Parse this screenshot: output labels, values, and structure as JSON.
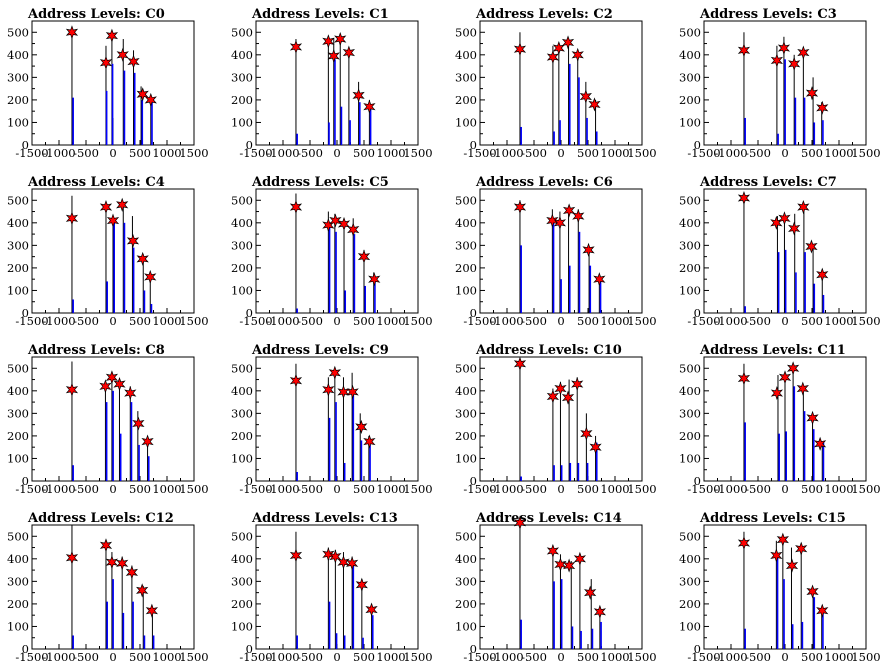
{
  "figure": {
    "title_prefix": "Address Levels: ",
    "xticks": [
      -1500,
      -1000,
      -500,
      0,
      500,
      1000,
      1500
    ],
    "xlim": [
      -1500,
      1500
    ],
    "ylim": [
      0,
      550
    ],
    "yticks": [
      0,
      100,
      200,
      300,
      400,
      500
    ],
    "colors": {
      "blue": "#0000ff",
      "black": "#000000",
      "star": "#ff0000"
    }
  },
  "chart_data": [
    {
      "type": "bar",
      "title": "Address Levels: C0",
      "black": [
        [
          -760,
          510
        ],
        [
          -130,
          440
        ],
        [
          -20,
          490
        ],
        [
          0,
          120
        ],
        [
          190,
          470
        ],
        [
          380,
          420
        ],
        [
          520,
          260
        ],
        [
          700,
          210
        ]
      ],
      "blue": [
        [
          -760,
          210
        ],
        [
          -140,
          240
        ],
        [
          -30,
          360
        ],
        [
          190,
          330
        ],
        [
          380,
          320
        ],
        [
          520,
          200
        ],
        [
          700,
          190
        ]
      ],
      "stars": [
        [
          -760,
          500
        ],
        [
          -130,
          365
        ],
        [
          -20,
          485
        ],
        [
          180,
          400
        ],
        [
          380,
          370
        ],
        [
          550,
          225
        ],
        [
          700,
          200
        ]
      ]
    },
    {
      "type": "bar",
      "title": "Address Levels: C1",
      "black": [
        [
          -760,
          470
        ],
        [
          -160,
          460
        ],
        [
          -60,
          475
        ],
        [
          60,
          460
        ],
        [
          220,
          430
        ],
        [
          400,
          280
        ],
        [
          600,
          200
        ]
      ],
      "blue": [
        [
          -760,
          50
        ],
        [
          -170,
          100
        ],
        [
          -60,
          380
        ],
        [
          60,
          170
        ],
        [
          220,
          110
        ],
        [
          400,
          190
        ],
        [
          600,
          170
        ]
      ],
      "stars": [
        [
          -760,
          435
        ],
        [
          -160,
          460
        ],
        [
          -60,
          395
        ],
        [
          60,
          470
        ],
        [
          220,
          410
        ],
        [
          400,
          220
        ],
        [
          600,
          170
        ]
      ]
    },
    {
      "type": "bar",
      "title": "Address Levels: C2",
      "black": [
        [
          -760,
          500
        ],
        [
          -150,
          440
        ],
        [
          -40,
          450
        ],
        [
          140,
          470
        ],
        [
          310,
          420
        ],
        [
          460,
          280
        ],
        [
          640,
          200
        ]
      ],
      "blue": [
        [
          -760,
          80
        ],
        [
          -150,
          60
        ],
        [
          -40,
          110
        ],
        [
          140,
          360
        ],
        [
          310,
          300
        ],
        [
          460,
          120
        ],
        [
          640,
          60
        ]
      ],
      "stars": [
        [
          -760,
          425
        ],
        [
          -150,
          390
        ],
        [
          -40,
          430
        ],
        [
          130,
          455
        ],
        [
          310,
          400
        ],
        [
          460,
          215
        ],
        [
          620,
          180
        ]
      ]
    },
    {
      "type": "bar",
      "title": "Address Levels: C3",
      "black": [
        [
          -760,
          500
        ],
        [
          -150,
          440
        ],
        [
          -20,
          480
        ],
        [
          170,
          400
        ],
        [
          340,
          420
        ],
        [
          520,
          300
        ],
        [
          680,
          190
        ]
      ],
      "blue": [
        [
          -760,
          120
        ],
        [
          -150,
          50
        ],
        [
          -20,
          380
        ],
        [
          170,
          210
        ],
        [
          340,
          210
        ],
        [
          520,
          100
        ],
        [
          680,
          110
        ]
      ],
      "stars": [
        [
          -760,
          420
        ],
        [
          -150,
          375
        ],
        [
          -20,
          430
        ],
        [
          170,
          360
        ],
        [
          340,
          410
        ],
        [
          500,
          230
        ],
        [
          690,
          165
        ]
      ]
    },
    {
      "type": "bar",
      "title": "Address Levels: C4",
      "black": [
        [
          -760,
          520
        ],
        [
          -130,
          480
        ],
        [
          0,
          430
        ],
        [
          190,
          490
        ],
        [
          360,
          430
        ],
        [
          560,
          260
        ],
        [
          690,
          180
        ]
      ],
      "blue": [
        [
          -760,
          60
        ],
        [
          -130,
          140
        ],
        [
          0,
          400
        ],
        [
          190,
          400
        ],
        [
          360,
          290
        ],
        [
          560,
          100
        ],
        [
          690,
          40
        ]
      ],
      "stars": [
        [
          -760,
          420
        ],
        [
          -130,
          470
        ],
        [
          0,
          410
        ],
        [
          170,
          480
        ],
        [
          370,
          320
        ],
        [
          550,
          240
        ],
        [
          690,
          160
        ]
      ]
    },
    {
      "type": "bar",
      "title": "Address Levels: C5",
      "black": [
        [
          -760,
          530
        ],
        [
          -160,
          450
        ],
        [
          -40,
          440
        ],
        [
          130,
          420
        ],
        [
          300,
          420
        ],
        [
          500,
          280
        ],
        [
          680,
          180
        ]
      ],
      "blue": [
        [
          -760,
          20
        ],
        [
          -160,
          380
        ],
        [
          -40,
          360
        ],
        [
          130,
          100
        ],
        [
          300,
          350
        ],
        [
          500,
          120
        ],
        [
          680,
          140
        ]
      ],
      "stars": [
        [
          -760,
          470
        ],
        [
          -160,
          390
        ],
        [
          -30,
          410
        ],
        [
          130,
          395
        ],
        [
          300,
          370
        ],
        [
          500,
          250
        ],
        [
          690,
          150
        ]
      ]
    },
    {
      "type": "bar",
      "title": "Address Levels: C6",
      "black": [
        [
          -760,
          500
        ],
        [
          -160,
          460
        ],
        [
          -20,
          450
        ],
        [
          140,
          470
        ],
        [
          320,
          460
        ],
        [
          520,
          290
        ],
        [
          710,
          160
        ]
      ],
      "blue": [
        [
          -760,
          300
        ],
        [
          -160,
          400
        ],
        [
          -20,
          150
        ],
        [
          140,
          210
        ],
        [
          320,
          360
        ],
        [
          520,
          210
        ],
        [
          710,
          140
        ]
      ],
      "stars": [
        [
          -760,
          470
        ],
        [
          -160,
          410
        ],
        [
          -20,
          400
        ],
        [
          150,
          455
        ],
        [
          320,
          430
        ],
        [
          510,
          280
        ],
        [
          710,
          150
        ]
      ]
    },
    {
      "type": "bar",
      "title": "Address Levels: C7",
      "black": [
        [
          -760,
          510
        ],
        [
          -140,
          430
        ],
        [
          -10,
          440
        ],
        [
          180,
          440
        ],
        [
          350,
          480
        ],
        [
          520,
          300
        ],
        [
          690,
          190
        ]
      ],
      "blue": [
        [
          -760,
          30
        ],
        [
          -140,
          270
        ],
        [
          -10,
          280
        ],
        [
          180,
          180
        ],
        [
          350,
          270
        ],
        [
          520,
          130
        ],
        [
          690,
          80
        ]
      ],
      "stars": [
        [
          -760,
          510
        ],
        [
          -160,
          400
        ],
        [
          -10,
          420
        ],
        [
          170,
          375
        ],
        [
          340,
          470
        ],
        [
          490,
          295
        ],
        [
          690,
          170
        ]
      ]
    },
    {
      "type": "bar",
      "title": "Address Levels: C8",
      "black": [
        [
          -760,
          530
        ],
        [
          -140,
          440
        ],
        [
          -20,
          470
        ],
        [
          120,
          440
        ],
        [
          320,
          420
        ],
        [
          460,
          310
        ],
        [
          640,
          170
        ]
      ],
      "blue": [
        [
          -760,
          70
        ],
        [
          -140,
          350
        ],
        [
          -20,
          400
        ],
        [
          120,
          210
        ],
        [
          320,
          350
        ],
        [
          460,
          160
        ],
        [
          640,
          110
        ]
      ],
      "stars": [
        [
          -760,
          405
        ],
        [
          -140,
          420
        ],
        [
          -20,
          460
        ],
        [
          120,
          430
        ],
        [
          320,
          390
        ],
        [
          470,
          255
        ],
        [
          640,
          175
        ]
      ]
    },
    {
      "type": "bar",
      "title": "Address Levels: C9",
      "black": [
        [
          -760,
          520
        ],
        [
          -160,
          460
        ],
        [
          -40,
          480
        ],
        [
          120,
          460
        ],
        [
          280,
          480
        ],
        [
          430,
          300
        ],
        [
          590,
          200
        ]
      ],
      "blue": [
        [
          -760,
          40
        ],
        [
          -160,
          280
        ],
        [
          -40,
          350
        ],
        [
          120,
          80
        ],
        [
          280,
          390
        ],
        [
          430,
          180
        ],
        [
          590,
          160
        ]
      ],
      "stars": [
        [
          -760,
          445
        ],
        [
          -160,
          405
        ],
        [
          -40,
          480
        ],
        [
          120,
          395
        ],
        [
          290,
          395
        ],
        [
          450,
          240
        ],
        [
          600,
          175
        ]
      ]
    },
    {
      "type": "bar",
      "title": "Address Levels: C10",
      "black": [
        [
          -760,
          530
        ],
        [
          -150,
          410
        ],
        [
          -10,
          440
        ],
        [
          150,
          450
        ],
        [
          300,
          460
        ],
        [
          470,
          300
        ],
        [
          640,
          200
        ]
      ],
      "blue": [
        [
          -760,
          20
        ],
        [
          -150,
          70
        ],
        [
          -10,
          70
        ],
        [
          150,
          80
        ],
        [
          300,
          80
        ],
        [
          470,
          80
        ],
        [
          640,
          170
        ]
      ],
      "stars": [
        [
          -760,
          520
        ],
        [
          -150,
          375
        ],
        [
          -10,
          410
        ],
        [
          130,
          370
        ],
        [
          300,
          430
        ],
        [
          470,
          210
        ],
        [
          640,
          150
        ]
      ]
    },
    {
      "type": "bar",
      "title": "Address Levels: C11",
      "black": [
        [
          -760,
          520
        ],
        [
          -130,
          470
        ],
        [
          0,
          470
        ],
        [
          150,
          510
        ],
        [
          340,
          400
        ],
        [
          510,
          260
        ],
        [
          690,
          170
        ]
      ],
      "blue": [
        [
          -760,
          260
        ],
        [
          -130,
          210
        ],
        [
          0,
          220
        ],
        [
          150,
          420
        ],
        [
          340,
          310
        ],
        [
          510,
          230
        ],
        [
          690,
          170
        ]
      ],
      "stars": [
        [
          -760,
          455
        ],
        [
          -150,
          390
        ],
        [
          0,
          460
        ],
        [
          150,
          500
        ],
        [
          330,
          410
        ],
        [
          510,
          280
        ],
        [
          650,
          165
        ]
      ]
    },
    {
      "type": "bar",
      "title": "Address Levels: C12",
      "black": [
        [
          -760,
          550
        ],
        [
          -130,
          470
        ],
        [
          -20,
          430
        ],
        [
          170,
          410
        ],
        [
          350,
          370
        ],
        [
          560,
          280
        ],
        [
          730,
          170
        ]
      ],
      "blue": [
        [
          -760,
          60
        ],
        [
          -130,
          210
        ],
        [
          -20,
          310
        ],
        [
          170,
          160
        ],
        [
          350,
          210
        ],
        [
          560,
          60
        ],
        [
          730,
          60
        ]
      ],
      "stars": [
        [
          -760,
          405
        ],
        [
          -130,
          460
        ],
        [
          -20,
          385
        ],
        [
          170,
          380
        ],
        [
          350,
          340
        ],
        [
          540,
          260
        ],
        [
          720,
          170
        ]
      ]
    },
    {
      "type": "bar",
      "title": "Address Levels: C13",
      "black": [
        [
          -760,
          520
        ],
        [
          -160,
          450
        ],
        [
          -30,
          440
        ],
        [
          120,
          430
        ],
        [
          280,
          410
        ],
        [
          460,
          310
        ],
        [
          640,
          180
        ]
      ],
      "blue": [
        [
          -760,
          60
        ],
        [
          -160,
          210
        ],
        [
          -30,
          70
        ],
        [
          120,
          60
        ],
        [
          280,
          380
        ],
        [
          460,
          50
        ],
        [
          640,
          150
        ]
      ],
      "stars": [
        [
          -760,
          415
        ],
        [
          -160,
          420
        ],
        [
          -30,
          410
        ],
        [
          120,
          385
        ],
        [
          280,
          380
        ],
        [
          460,
          285
        ],
        [
          640,
          175
        ]
      ]
    },
    {
      "type": "bar",
      "title": "Address Levels: C14",
      "black": [
        [
          -760,
          560
        ],
        [
          -150,
          460
        ],
        [
          -10,
          420
        ],
        [
          190,
          390
        ],
        [
          350,
          420
        ],
        [
          560,
          310
        ],
        [
          720,
          180
        ]
      ],
      "blue": [
        [
          -760,
          130
        ],
        [
          -150,
          300
        ],
        [
          -10,
          310
        ],
        [
          190,
          100
        ],
        [
          350,
          80
        ],
        [
          560,
          90
        ],
        [
          720,
          120
        ]
      ],
      "stars": [
        [
          -760,
          560
        ],
        [
          -150,
          435
        ],
        [
          -10,
          375
        ],
        [
          150,
          370
        ],
        [
          350,
          400
        ],
        [
          540,
          250
        ],
        [
          720,
          165
        ]
      ]
    },
    {
      "type": "bar",
      "title": "Address Levels: C15",
      "black": [
        [
          -760,
          520
        ],
        [
          -160,
          480
        ],
        [
          -40,
          490
        ],
        [
          120,
          450
        ],
        [
          300,
          450
        ],
        [
          520,
          270
        ],
        [
          680,
          180
        ]
      ],
      "blue": [
        [
          -760,
          90
        ],
        [
          -160,
          410
        ],
        [
          -40,
          310
        ],
        [
          120,
          110
        ],
        [
          300,
          120
        ],
        [
          520,
          230
        ],
        [
          680,
          170
        ]
      ],
      "stars": [
        [
          -760,
          470
        ],
        [
          -160,
          415
        ],
        [
          -40,
          485
        ],
        [
          130,
          370
        ],
        [
          300,
          445
        ],
        [
          510,
          255
        ],
        [
          690,
          170
        ]
      ]
    }
  ]
}
